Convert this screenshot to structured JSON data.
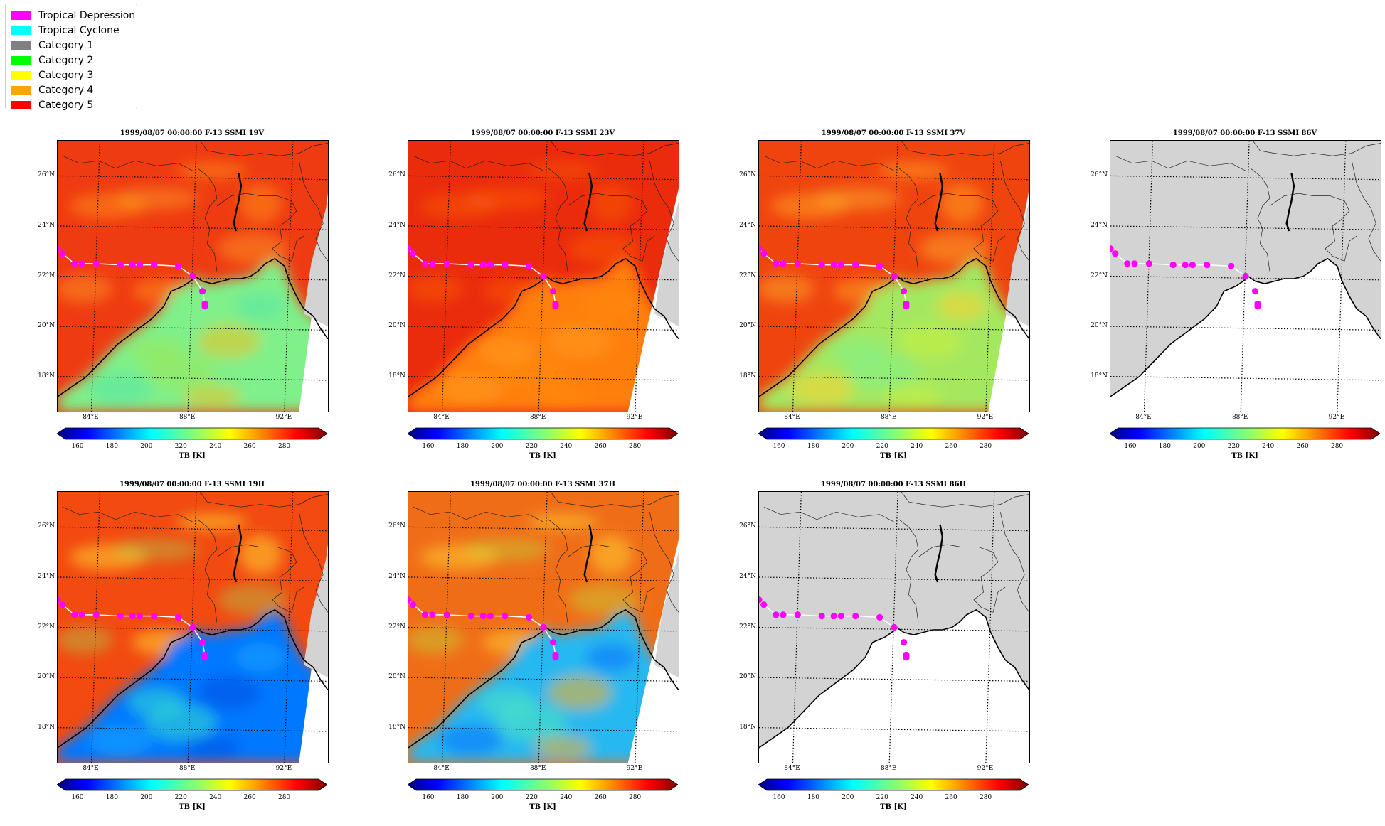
{
  "legend": {
    "items": [
      {
        "label": "Tropical Depression",
        "color": "#ff00ff"
      },
      {
        "label": "Tropical Cyclone",
        "color": "#00ffff"
      },
      {
        "label": "Category 1",
        "color": "#808080"
      },
      {
        "label": "Category 2",
        "color": "#00ff00"
      },
      {
        "label": "Category 3",
        "color": "#ffff00"
      },
      {
        "label": "Category 4",
        "color": "#ffa500"
      },
      {
        "label": "Category 5",
        "color": "#ff0000"
      }
    ]
  },
  "colorbar": {
    "label": "TB [K]",
    "ticks": [
      "160",
      "180",
      "200",
      "220",
      "240",
      "260",
      "280"
    ],
    "range": [
      153,
      300
    ]
  },
  "axes": {
    "y_ticks": [
      "26°N",
      "24°N",
      "22°N",
      "20°N",
      "18°N"
    ],
    "x_ticks": [
      "84°E",
      "88°E",
      "92°E"
    ]
  },
  "panels": [
    {
      "title": "1999/08/07 00:00:00  F-13 SSMI 19V",
      "style": "19V"
    },
    {
      "title": "1999/08/07 00:00:00  F-13 SSMI 23V",
      "style": "23V"
    },
    {
      "title": "1999/08/07 00:00:00  F-13 SSMI 37V",
      "style": "37V"
    },
    {
      "title": "1999/08/07 00:00:00  F-13 SSMI 86V",
      "style": "86V"
    },
    {
      "title": "1999/08/07 00:00:00  F-13 SSMI 19H",
      "style": "19H"
    },
    {
      "title": "1999/08/07 00:00:00  F-13 SSMI 37H",
      "style": "37H"
    },
    {
      "title": "1999/08/07 00:00:00  F-13 SSMI 86H",
      "style": "86H"
    }
  ],
  "chart_data": {
    "type": "map",
    "region": {
      "lon": [
        82.4,
        93.6
      ],
      "lat": [
        16.6,
        27.4
      ]
    },
    "track_color": "#ff00ff",
    "track": [
      {
        "lon": 82.4,
        "lat": 23.1
      },
      {
        "lon": 82.6,
        "lat": 22.9
      },
      {
        "lon": 83.1,
        "lat": 22.5
      },
      {
        "lon": 83.4,
        "lat": 22.5
      },
      {
        "lon": 84.0,
        "lat": 22.5
      },
      {
        "lon": 85.0,
        "lat": 22.45
      },
      {
        "lon": 85.5,
        "lat": 22.45
      },
      {
        "lon": 85.8,
        "lat": 22.45
      },
      {
        "lon": 86.4,
        "lat": 22.45
      },
      {
        "lon": 87.4,
        "lat": 22.4
      },
      {
        "lon": 88.0,
        "lat": 22.0
      },
      {
        "lon": 88.4,
        "lat": 21.4
      },
      {
        "lon": 88.5,
        "lat": 20.9
      },
      {
        "lon": 88.5,
        "lat": 20.8
      }
    ]
  }
}
